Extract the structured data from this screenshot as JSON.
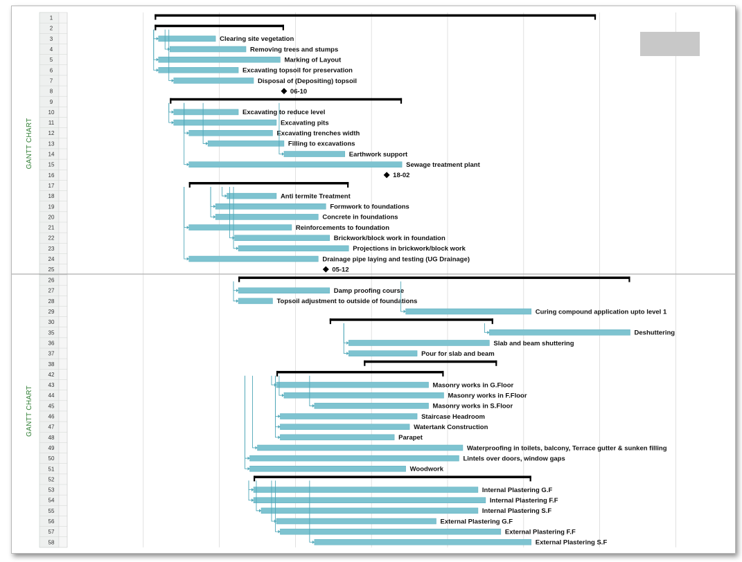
{
  "chart_data": {
    "type": "gantt",
    "side_title": "GANTT CHART",
    "colors": {
      "task_bar": "#7ec3d0",
      "task_bar_edge": "#5aaebe",
      "summary_bar": "#000000",
      "milestone": "#000000",
      "link": "#4fa7b8",
      "row_header": "#eef0ef",
      "side_title": "#2e7d32",
      "grid": "#d4d4d4",
      "legend_box": "#c8c8c8"
    },
    "x_axis": {
      "unit": "time column",
      "min": 0,
      "max": 8,
      "grid_columns": 8
    },
    "panels": [
      {
        "name": "top",
        "side_title": "GANTT CHART",
        "rows": [
          {
            "id": "1",
            "type": "summary",
            "start": 1.15,
            "end": 6.95
          },
          {
            "id": "2",
            "type": "summary",
            "start": 1.15,
            "end": 2.85
          },
          {
            "id": "3",
            "type": "task",
            "name": "Clearing site vegetation",
            "start": 1.2,
            "end": 1.95
          },
          {
            "id": "4",
            "type": "task",
            "name": "Removing trees and stumps",
            "start": 1.35,
            "end": 2.35
          },
          {
            "id": "5",
            "type": "task",
            "name": "Marking of Layout",
            "start": 1.2,
            "end": 2.8
          },
          {
            "id": "6",
            "type": "task",
            "name": "Excavating topsoil for preservation",
            "start": 1.2,
            "end": 2.25
          },
          {
            "id": "7",
            "type": "task",
            "name": "Disposal of (Depositing) topsoil",
            "start": 1.4,
            "end": 2.45
          },
          {
            "id": "8",
            "type": "milestone",
            "name": "06-10",
            "at": 2.85
          },
          {
            "id": "9",
            "type": "summary",
            "start": 1.35,
            "end": 4.4
          },
          {
            "id": "10",
            "type": "task",
            "name": "Excavating to reduce level",
            "start": 1.4,
            "end": 2.25
          },
          {
            "id": "11",
            "type": "task",
            "name": "Excavating pits",
            "start": 1.4,
            "end": 2.75
          },
          {
            "id": "12",
            "type": "task",
            "name": "Excavating trenches width",
            "start": 1.6,
            "end": 2.7
          },
          {
            "id": "13",
            "type": "task",
            "name": "Filling to excavations",
            "start": 1.85,
            "end": 2.85
          },
          {
            "id": "14",
            "type": "task",
            "name": "Earthwork support",
            "start": 2.85,
            "end": 3.65
          },
          {
            "id": "15",
            "type": "task",
            "name": "Sewage treatment plant",
            "start": 1.6,
            "end": 4.4
          },
          {
            "id": "16",
            "type": "milestone",
            "name": "18-02",
            "at": 4.2
          },
          {
            "id": "17",
            "type": "summary",
            "start": 1.6,
            "end": 3.7
          },
          {
            "id": "18",
            "type": "task",
            "name": "Anti termite Treatment",
            "start": 2.1,
            "end": 2.75
          },
          {
            "id": "19",
            "type": "task",
            "name": "Formwork to foundations",
            "start": 1.95,
            "end": 3.4
          },
          {
            "id": "20",
            "type": "task",
            "name": "Concrete in foundations",
            "start": 1.95,
            "end": 3.3
          },
          {
            "id": "21",
            "type": "task",
            "name": "Reinforcements to foundation",
            "start": 1.6,
            "end": 2.95
          },
          {
            "id": "22",
            "type": "task",
            "name": "Brickwork/block work in foundation",
            "start": 2.2,
            "end": 3.45
          },
          {
            "id": "23",
            "type": "task",
            "name": "Projections in brickwork/block work",
            "start": 2.25,
            "end": 3.7
          },
          {
            "id": "24",
            "type": "task",
            "name": "Drainage pipe laying and testing (UG Drainage)",
            "start": 1.6,
            "end": 3.3
          },
          {
            "id": "25",
            "type": "milestone",
            "name": "05-12",
            "at": 3.4
          }
        ]
      },
      {
        "name": "bottom",
        "side_title": "GANTT CHART",
        "rows": [
          {
            "id": "26",
            "type": "summary",
            "start": 2.25,
            "end": 7.4
          },
          {
            "id": "27",
            "type": "task",
            "name": "Damp proofing course",
            "start": 2.25,
            "end": 3.45
          },
          {
            "id": "28",
            "type": "task",
            "name": "Topsoil adjustment to outside of foundations",
            "start": 2.25,
            "end": 2.7
          },
          {
            "id": "29",
            "type": "task",
            "name": "Curing compound application upto level 1",
            "start": 4.45,
            "end": 6.1
          },
          {
            "id": "30",
            "type": "summary",
            "start": 3.45,
            "end": 5.6
          },
          {
            "id": "35",
            "type": "task",
            "name": "Deshuttering",
            "start": 5.55,
            "end": 7.4
          },
          {
            "id": "36",
            "type": "task",
            "name": "Slab and beam shuttering",
            "start": 3.7,
            "end": 5.55
          },
          {
            "id": "37",
            "type": "task",
            "name": "Pour for slab and beam",
            "start": 3.7,
            "end": 4.6
          },
          {
            "id": "38",
            "type": "summary",
            "start": 3.9,
            "end": 5.65
          },
          {
            "id": "42",
            "type": "summary",
            "start": 2.75,
            "end": 4.95
          },
          {
            "id": "43",
            "type": "task",
            "name": "Masonry works in G.Floor",
            "start": 2.75,
            "end": 4.75
          },
          {
            "id": "44",
            "type": "task",
            "name": "Masonry works in F.Floor",
            "start": 2.85,
            "end": 4.95
          },
          {
            "id": "45",
            "type": "task",
            "name": "Masonry works in S.Floor",
            "start": 3.25,
            "end": 4.75
          },
          {
            "id": "46",
            "type": "task",
            "name": "Staircase Headroom",
            "start": 2.8,
            "end": 4.6
          },
          {
            "id": "47",
            "type": "task",
            "name": "Watertank Construction",
            "start": 2.8,
            "end": 4.5
          },
          {
            "id": "48",
            "type": "task",
            "name": "Parapet",
            "start": 2.8,
            "end": 4.3
          },
          {
            "id": "49",
            "type": "task",
            "name": "Waterproofing in toilets, balcony, Terrace gutter & sunken filling",
            "start": 2.5,
            "end": 5.2
          },
          {
            "id": "50",
            "type": "task",
            "name": "Lintels over doors, window gaps",
            "start": 2.4,
            "end": 5.15
          },
          {
            "id": "51",
            "type": "task",
            "name": "Woodwork",
            "start": 2.4,
            "end": 4.45
          },
          {
            "id": "52",
            "type": "summary",
            "start": 2.45,
            "end": 6.1
          },
          {
            "id": "53",
            "type": "task",
            "name": "Internal Plastering G.F",
            "start": 2.45,
            "end": 5.4
          },
          {
            "id": "54",
            "type": "task",
            "name": "Internal Plastering F.F",
            "start": 2.45,
            "end": 5.5
          },
          {
            "id": "55",
            "type": "task",
            "name": "Internal Plastering S.F",
            "start": 2.55,
            "end": 5.4
          },
          {
            "id": "56",
            "type": "task",
            "name": "External Plastering G.F",
            "start": 2.75,
            "end": 4.85
          },
          {
            "id": "57",
            "type": "task",
            "name": "External Plastering F.F",
            "start": 2.8,
            "end": 5.7
          },
          {
            "id": "58",
            "type": "task",
            "name": "External Plastering S.F",
            "start": 3.25,
            "end": 6.1
          }
        ]
      }
    ]
  }
}
